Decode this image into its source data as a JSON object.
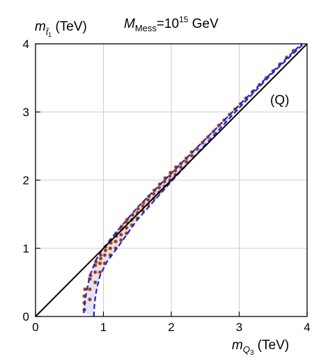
{
  "chart_data": {
    "type": "scatter",
    "title_prefix": "M",
    "title_sub": "Mess",
    "title_mid": "=10",
    "title_sup": "15",
    "title_suffix": " GeV",
    "xlabel_var": "m",
    "xlabel_sub": "Q",
    "xlabel_subsub": "3",
    "xlabel_unit": " (TeV)",
    "ylabel_var": "m",
    "ylabel_sub": "t̃",
    "ylabel_subsub": "1",
    "ylabel_unit": " (TeV)",
    "annotation": "(Q)",
    "xlim": [
      0,
      4
    ],
    "ylim": [
      0,
      4
    ],
    "xticks": [
      0,
      1,
      2,
      3,
      4
    ],
    "yticks": [
      0,
      1,
      2,
      3,
      4
    ],
    "grid": true,
    "colors": {
      "diagonal": "#000000",
      "band_edge": "#2222cc",
      "band_fill": "#e4e4f6",
      "points": "#8b3a1a",
      "points_light": "#d9a07a",
      "grid": "#cccccc"
    },
    "series": [
      {
        "kind": "reference-line",
        "x": [
          0,
          4
        ],
        "y": [
          0,
          4
        ]
      },
      {
        "kind": "band-upper-dashed",
        "x": [
          0.71,
          0.73,
          0.8,
          0.9,
          1.0,
          1.2,
          1.5,
          2.0,
          2.5,
          3.0,
          3.5,
          3.92
        ],
        "y": [
          0.05,
          0.25,
          0.6,
          0.85,
          1.0,
          1.25,
          1.6,
          2.1,
          2.6,
          3.1,
          3.6,
          4.0
        ]
      },
      {
        "kind": "band-lower-dashed",
        "x": [
          0.86,
          0.87,
          0.9,
          0.95,
          1.05,
          1.2,
          1.5,
          2.0,
          2.5,
          3.0,
          3.5,
          3.95
        ],
        "y": [
          0.0,
          0.2,
          0.4,
          0.6,
          0.8,
          1.0,
          1.42,
          1.98,
          2.52,
          3.06,
          3.58,
          4.0
        ]
      },
      {
        "kind": "points",
        "x": [
          0.72,
          0.72,
          0.72,
          0.73,
          0.8,
          0.8,
          0.8,
          0.81,
          0.88,
          0.88,
          0.88,
          0.89,
          0.95,
          0.95,
          0.96,
          0.96,
          1.02,
          1.02,
          1.03,
          1.03,
          1.1,
          1.1,
          1.11,
          1.11,
          1.18,
          1.18,
          1.19,
          1.19,
          1.26,
          1.26,
          1.27,
          1.27,
          1.34,
          1.34,
          1.35,
          1.35,
          1.42,
          1.42,
          1.43,
          1.5,
          1.5,
          1.51,
          1.58,
          1.58,
          1.59,
          1.66,
          1.66,
          1.67,
          1.74,
          1.74,
          1.75,
          1.82,
          1.82,
          1.83,
          1.9,
          1.9,
          1.91,
          1.98,
          1.98,
          1.99,
          2.06,
          2.06,
          2.07,
          2.14,
          2.14,
          2.22,
          2.22,
          2.3,
          2.3,
          2.38,
          2.46,
          2.54,
          2.62,
          2.7,
          2.78,
          2.86,
          2.94,
          3.02,
          3.1,
          3.2,
          3.3,
          3.4,
          3.5,
          3.6,
          3.7,
          3.8
        ],
        "y": [
          0.1,
          0.2,
          0.3,
          0.4,
          0.25,
          0.4,
          0.55,
          0.6,
          0.5,
          0.65,
          0.75,
          0.8,
          0.65,
          0.78,
          0.85,
          0.9,
          0.78,
          0.9,
          0.97,
          1.02,
          0.9,
          1.0,
          1.08,
          1.12,
          1.0,
          1.1,
          1.18,
          1.22,
          1.12,
          1.2,
          1.28,
          1.32,
          1.22,
          1.3,
          1.38,
          1.42,
          1.34,
          1.42,
          1.49,
          1.44,
          1.52,
          1.58,
          1.55,
          1.62,
          1.67,
          1.64,
          1.71,
          1.76,
          1.73,
          1.8,
          1.85,
          1.82,
          1.89,
          1.94,
          1.91,
          1.98,
          2.03,
          2.0,
          2.06,
          2.11,
          2.08,
          2.14,
          2.19,
          2.19,
          2.24,
          2.27,
          2.32,
          2.36,
          2.41,
          2.46,
          2.55,
          2.63,
          2.71,
          2.8,
          2.88,
          2.96,
          3.04,
          3.12,
          3.2,
          3.3,
          3.4,
          3.5,
          3.6,
          3.7,
          3.8,
          3.9
        ]
      }
    ]
  }
}
